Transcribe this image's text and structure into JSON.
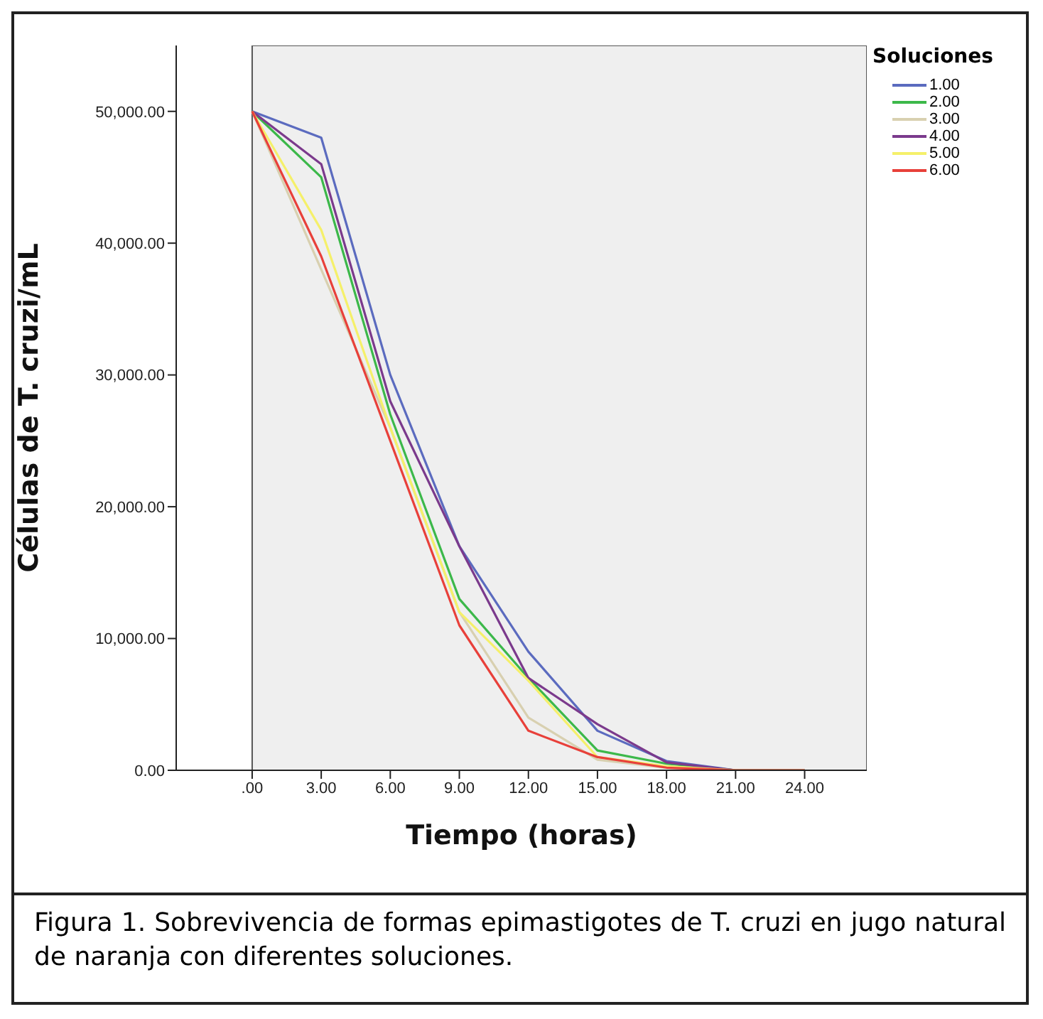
{
  "chart_data": {
    "type": "line",
    "xlabel": "Tiempo (horas)",
    "ylabel": "Células de T. cruzi/mL",
    "legend_title": "Soluciones",
    "categories": [
      ".00",
      "3.00",
      "6.00",
      "9.00",
      "12.00",
      "15.00",
      "18.00",
      "21.00",
      "24.00"
    ],
    "series": [
      {
        "name": "1.00",
        "color": "#5b6bbf",
        "values": [
          50000,
          48000,
          30000,
          17000,
          9000,
          3000,
          700,
          0,
          0
        ]
      },
      {
        "name": "2.00",
        "color": "#3cb84a",
        "values": [
          50000,
          45000,
          27000,
          13000,
          7000,
          1500,
          500,
          0,
          0
        ]
      },
      {
        "name": "3.00",
        "color": "#d8d0b0",
        "values": [
          50000,
          null,
          26000,
          12000,
          4000,
          800,
          200,
          0,
          0
        ]
      },
      {
        "name": "4.00",
        "color": "#7b3a8c",
        "values": [
          50000,
          46000,
          28000,
          17000,
          7000,
          3500,
          600,
          0,
          0
        ]
      },
      {
        "name": "5.00",
        "color": "#f5f06a",
        "values": [
          50000,
          41000,
          26000,
          12000,
          6800,
          1000,
          300,
          0,
          0
        ]
      },
      {
        "name": "6.00",
        "color": "#e8403a",
        "values": [
          50000,
          39000,
          25000,
          11000,
          3000,
          1000,
          200,
          0,
          0
        ]
      }
    ],
    "ylim": [
      0,
      55000
    ],
    "yticks": [
      {
        "value": 0,
        "label": "0.00"
      },
      {
        "value": 10000,
        "label": "10,000.00"
      },
      {
        "value": 20000,
        "label": "20,000.00"
      },
      {
        "value": 30000,
        "label": "30,000.00"
      },
      {
        "value": 40000,
        "label": "40,000.00"
      },
      {
        "value": 50000,
        "label": "50,000.00"
      }
    ],
    "grid": false,
    "legend": "top right",
    "marker": "none",
    "line_style": "solid",
    "annotations": [
      "Figura 1. Sobrevivencia de formas epimastigotes de T. cruzi en jugo natural de naranja con diferentes soluciones."
    ]
  }
}
